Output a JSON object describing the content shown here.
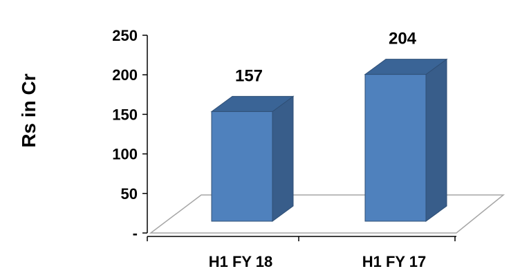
{
  "chart_data": {
    "type": "bar",
    "categories": [
      "H1 FY 18",
      "H1 FY 17"
    ],
    "values": [
      157,
      204
    ],
    "data_labels": [
      "157",
      "204"
    ],
    "title": "",
    "xlabel": "",
    "ylabel": "Rs in Cr",
    "ylim": [
      0,
      250
    ],
    "yticks": [
      0,
      50,
      100,
      150,
      200,
      250
    ],
    "ytick_labels": [
      "-",
      "50",
      "100",
      "150",
      "200",
      "250"
    ],
    "grid": false,
    "legend": "none",
    "style": "3d-column",
    "colors": {
      "bar_front": "#4f81bd",
      "bar_side": "#385d8a",
      "bar_top": "#3a6496",
      "bar_edge": "#2f4f75",
      "floor_edge": "#a6a6a6",
      "axis": "#000000"
    }
  }
}
